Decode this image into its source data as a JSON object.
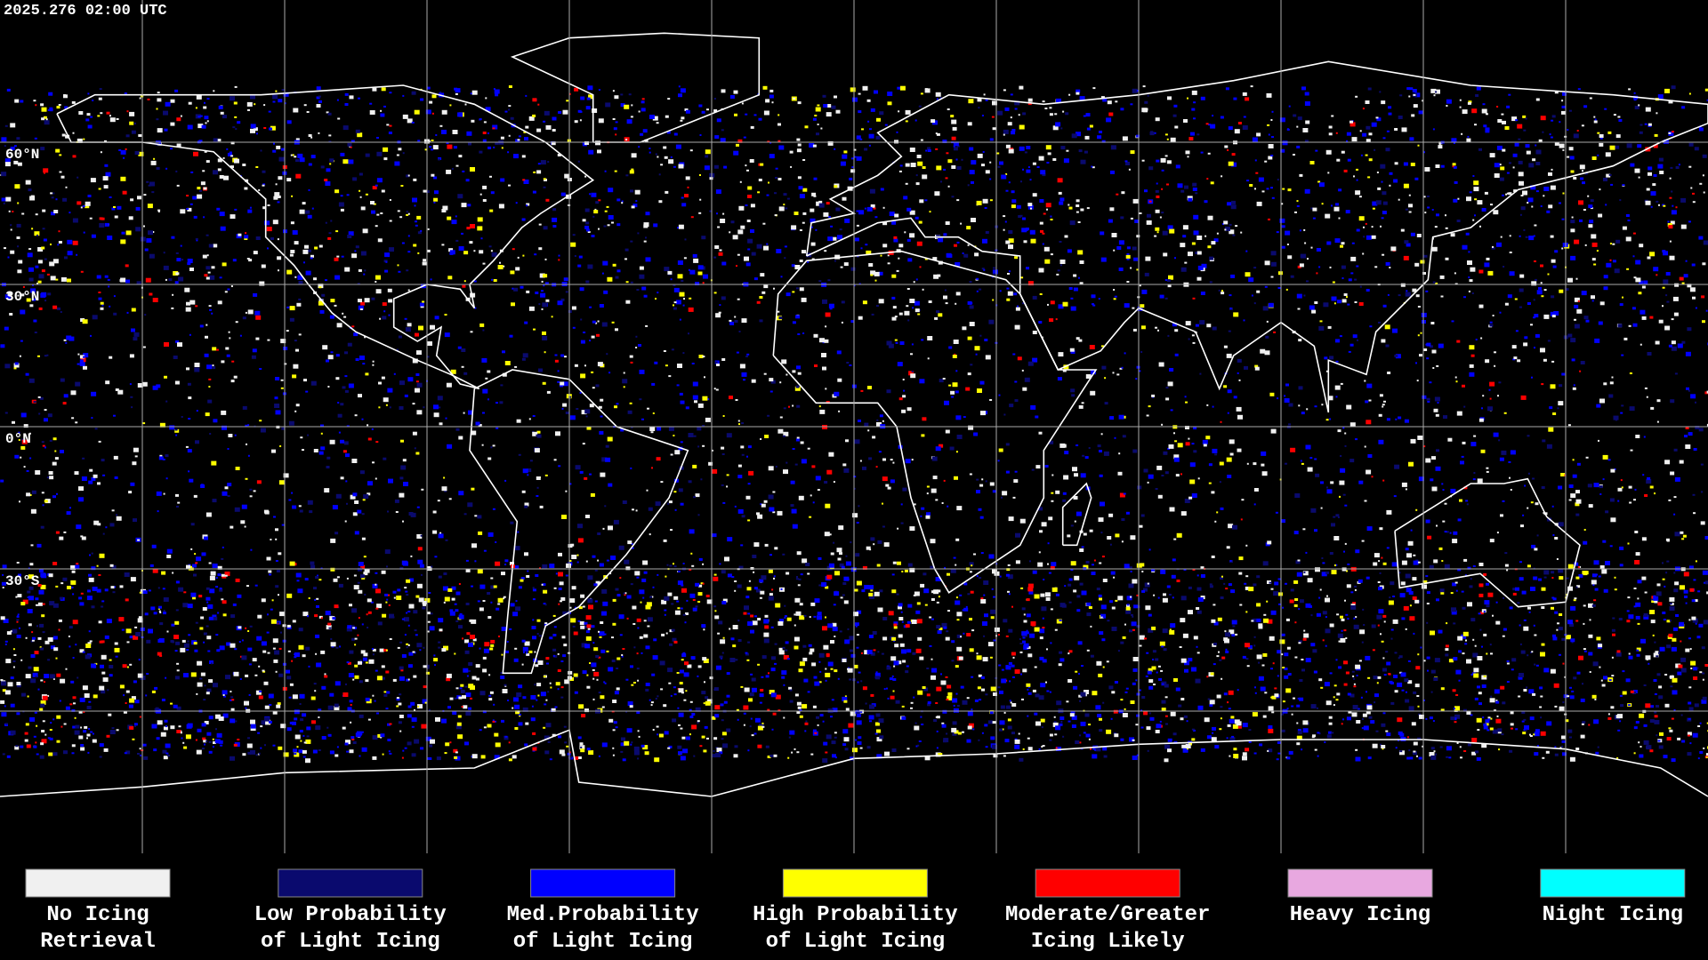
{
  "timestamp": "2025.276 02:00 UTC",
  "latitude_labels": [
    "60°N",
    "30°N",
    "0°N",
    "30°S"
  ],
  "legend": [
    {
      "lines": [
        "No Icing",
        "Retrieval"
      ],
      "color": "#f0f0f0"
    },
    {
      "lines": [
        "Low Probability",
        "of Light Icing"
      ],
      "color": "#0a0a6e"
    },
    {
      "lines": [
        "Med.Probability",
        "of Light Icing"
      ],
      "color": "#0000ff"
    },
    {
      "lines": [
        "High Probability",
        "of Light Icing"
      ],
      "color": "#ffff00"
    },
    {
      "lines": [
        "Moderate/Greater",
        "Icing Likely"
      ],
      "color": "#ff0000"
    },
    {
      "lines": [
        "Heavy Icing"
      ],
      "color": "#e8a8e0"
    },
    {
      "lines": [
        "Night Icing"
      ],
      "color": "#00ffff"
    }
  ]
}
